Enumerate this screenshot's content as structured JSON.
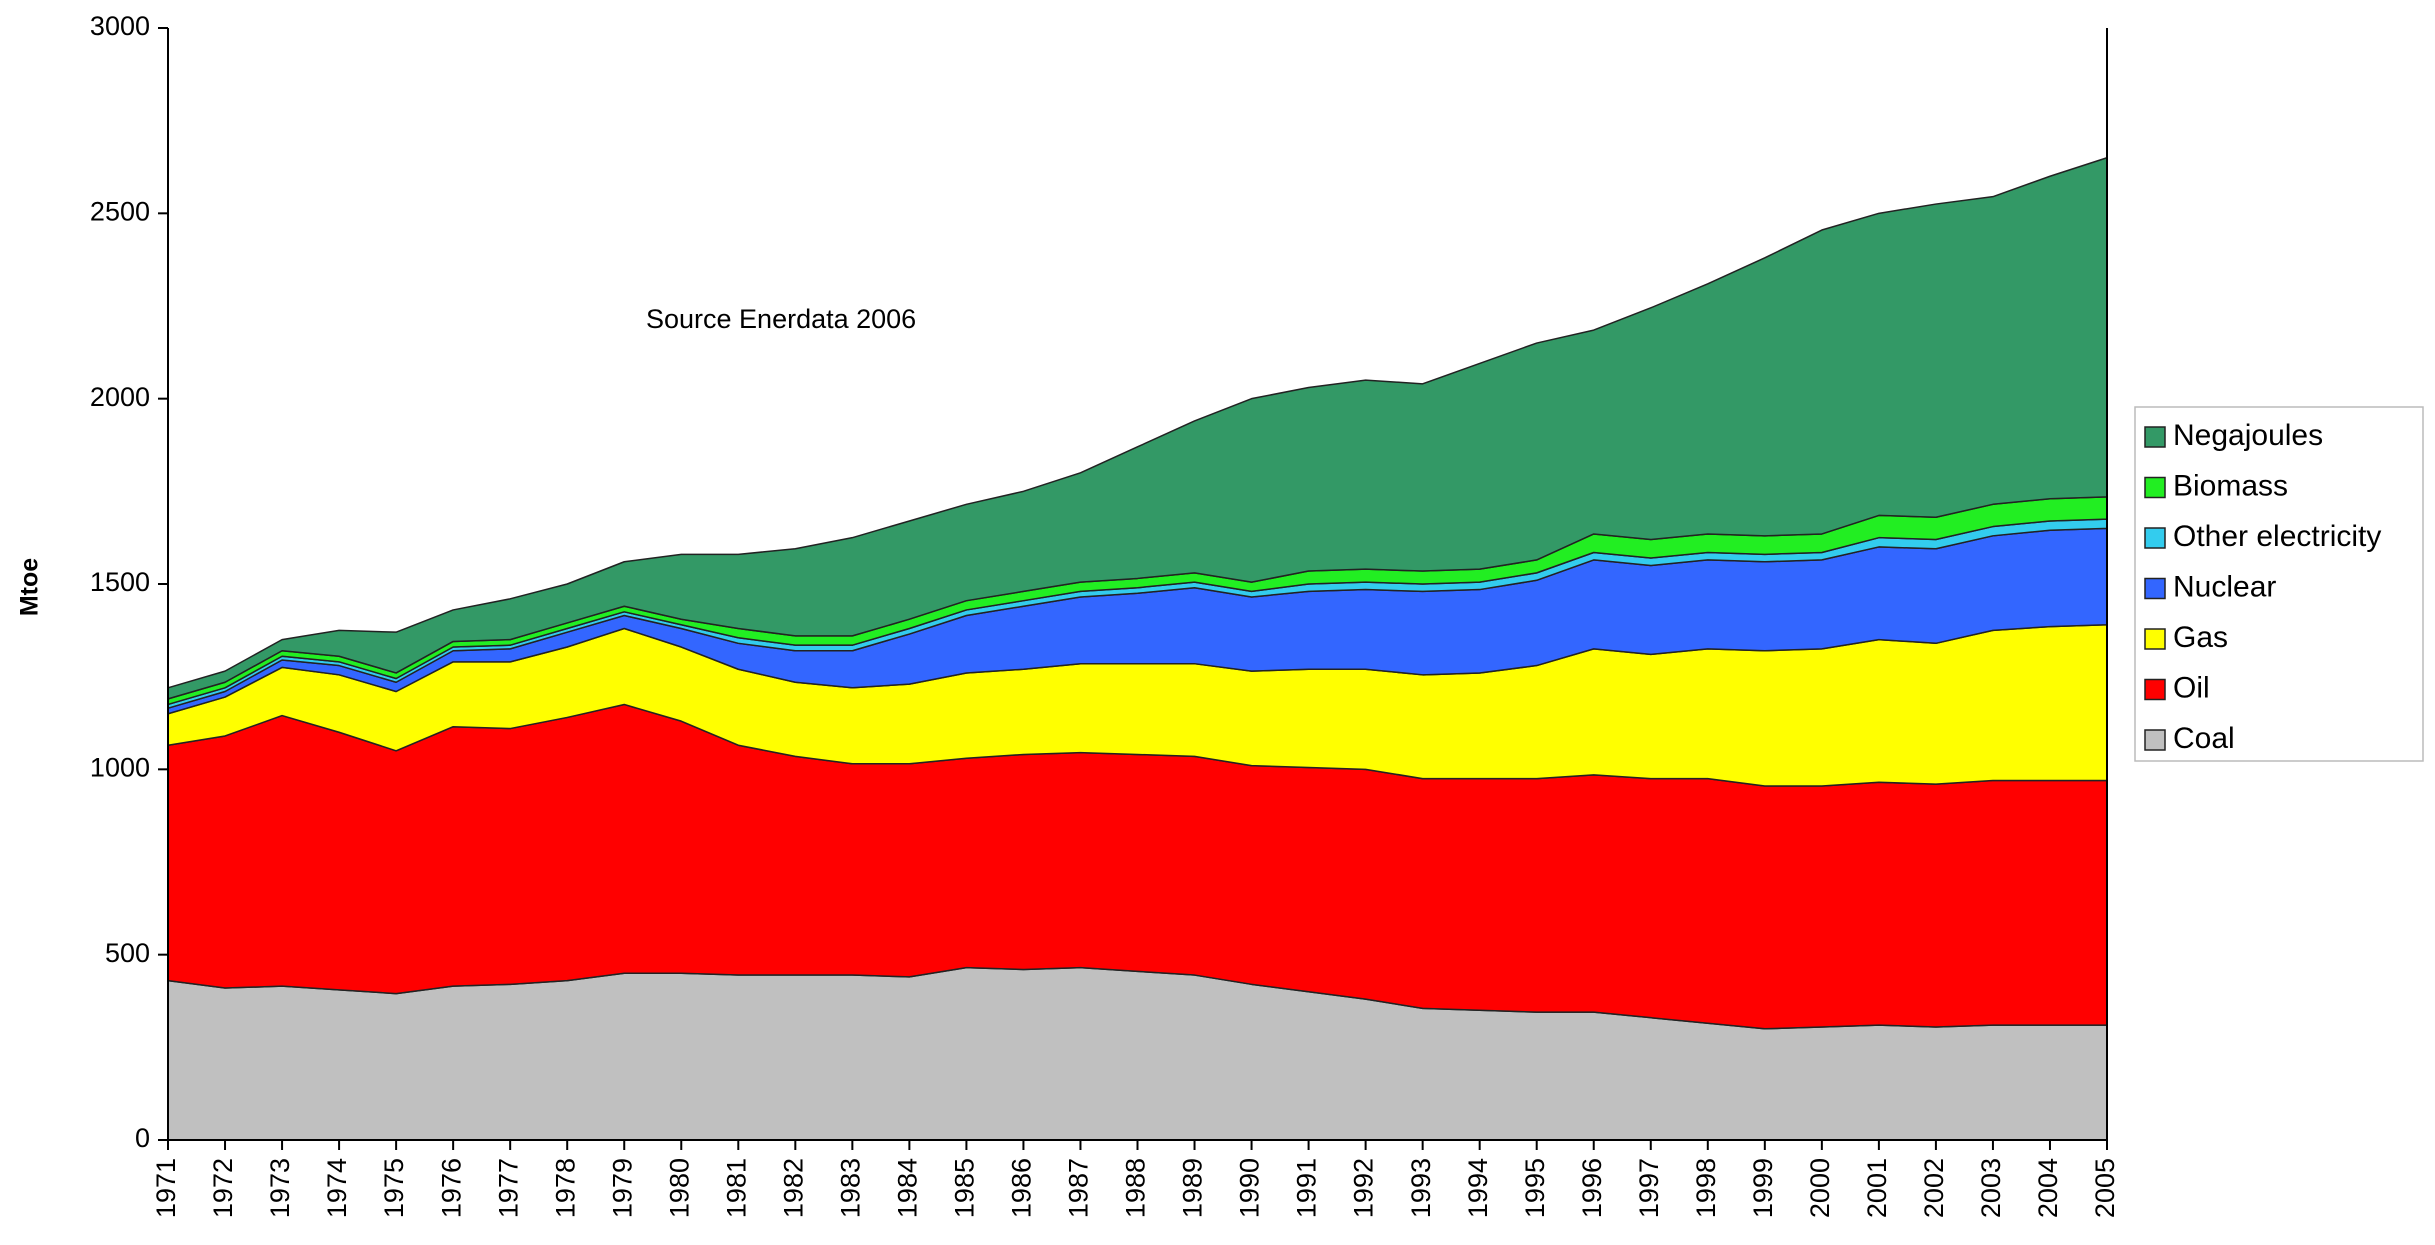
{
  "chart_data": {
    "type": "stacked_area",
    "y_label": "Mtoe",
    "annotation": "Source Enerdata 2006",
    "categories": [
      "1971",
      "1972",
      "1973",
      "1974",
      "1975",
      "1976",
      "1977",
      "1978",
      "1979",
      "1980",
      "1981",
      "1982",
      "1983",
      "1984",
      "1985",
      "1986",
      "1987",
      "1988",
      "1989",
      "1990",
      "1991",
      "1992",
      "1993",
      "1994",
      "1995",
      "1996",
      "1997",
      "1998",
      "1999",
      "2000",
      "2001",
      "2002",
      "2003",
      "2004",
      "2005"
    ],
    "series": [
      {
        "name": "Coal",
        "color": "#c0c0c0",
        "values": [
          430,
          410,
          415,
          405,
          395,
          415,
          420,
          430,
          450,
          450,
          445,
          445,
          445,
          440,
          465,
          460,
          465,
          455,
          445,
          420,
          400,
          380,
          355,
          350,
          345,
          345,
          330,
          315,
          300,
          305,
          310,
          305,
          310,
          310,
          310
        ]
      },
      {
        "name": "Oil",
        "color": "#ff0000",
        "values": [
          635,
          680,
          730,
          695,
          655,
          700,
          690,
          710,
          725,
          680,
          620,
          590,
          570,
          575,
          565,
          580,
          580,
          585,
          590,
          590,
          605,
          620,
          620,
          625,
          630,
          640,
          645,
          660,
          655,
          650,
          655,
          655,
          660,
          660,
          660
        ]
      },
      {
        "name": "Gas",
        "color": "#ffff00",
        "values": [
          85,
          105,
          130,
          155,
          160,
          175,
          180,
          190,
          205,
          200,
          205,
          200,
          205,
          215,
          230,
          230,
          240,
          245,
          250,
          255,
          265,
          270,
          280,
          285,
          305,
          340,
          335,
          350,
          365,
          370,
          385,
          380,
          405,
          415,
          420
        ]
      },
      {
        "name": "Nuclear",
        "color": "#3366ff",
        "values": [
          15,
          15,
          20,
          25,
          25,
          30,
          35,
          40,
          35,
          50,
          70,
          85,
          100,
          135,
          155,
          170,
          180,
          190,
          205,
          200,
          210,
          215,
          225,
          225,
          230,
          240,
          240,
          240,
          240,
          240,
          250,
          255,
          255,
          260,
          260
        ]
      },
      {
        "name": "Other electricity",
        "color": "#33ccee",
        "values": [
          10,
          10,
          10,
          10,
          10,
          10,
          10,
          10,
          10,
          10,
          15,
          15,
          15,
          15,
          15,
          15,
          15,
          15,
          15,
          15,
          20,
          20,
          20,
          20,
          20,
          20,
          20,
          20,
          20,
          20,
          25,
          25,
          25,
          25,
          25
        ]
      },
      {
        "name": "Biomass",
        "color": "#22ee22",
        "values": [
          15,
          15,
          15,
          15,
          15,
          15,
          15,
          15,
          15,
          15,
          25,
          25,
          25,
          25,
          25,
          25,
          25,
          25,
          25,
          25,
          35,
          35,
          35,
          35,
          35,
          50,
          50,
          50,
          50,
          50,
          60,
          60,
          60,
          60,
          60
        ]
      },
      {
        "name": "Negajoules",
        "color": "#339966",
        "values": [
          30,
          30,
          30,
          70,
          110,
          85,
          110,
          105,
          120,
          175,
          200,
          235,
          265,
          265,
          260,
          270,
          295,
          355,
          410,
          495,
          495,
          510,
          505,
          555,
          585,
          550,
          625,
          675,
          750,
          820,
          815,
          845,
          830,
          870,
          915
        ]
      }
    ],
    "ylim": [
      0,
      3000
    ],
    "yticks": [
      0,
      500,
      1000,
      1500,
      2000,
      2500,
      3000
    ],
    "grid": false,
    "legend": "right"
  }
}
